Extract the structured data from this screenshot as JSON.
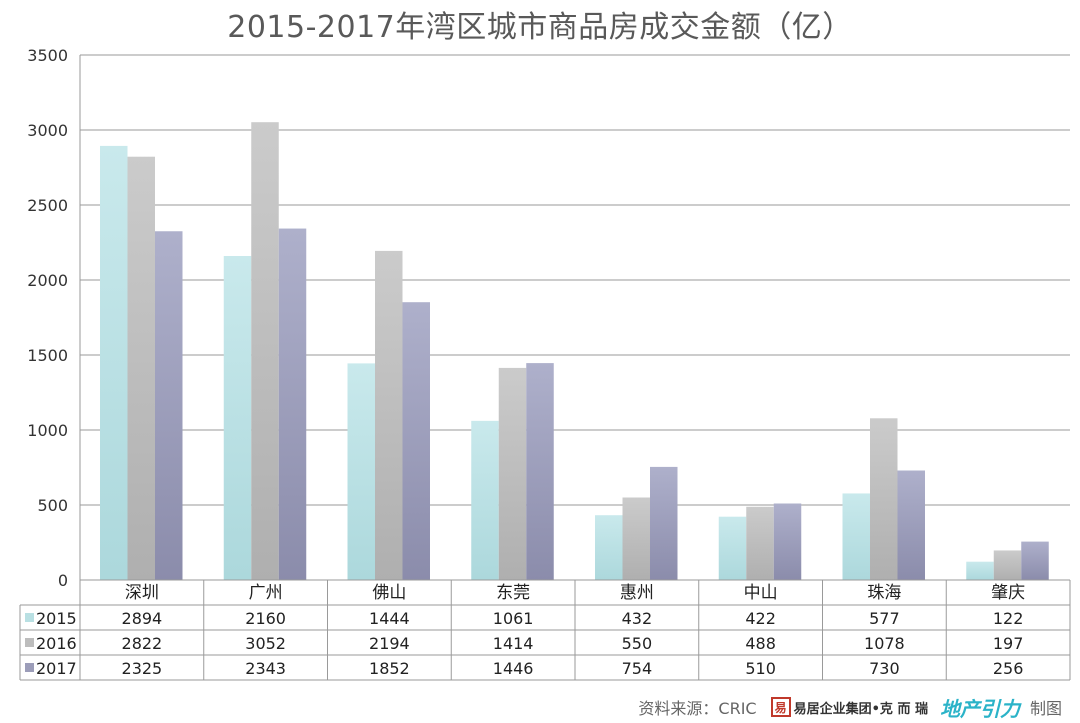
{
  "chart_data": {
    "type": "bar",
    "title": "2015-2017年湾区城市商品房成交金额（亿）",
    "categories": [
      "深圳",
      "广州",
      "佛山",
      "东莞",
      "惠州",
      "中山",
      "珠海",
      "肇庆"
    ],
    "series": [
      {
        "name": "2015",
        "values": [
          2894,
          2160,
          1444,
          1061,
          432,
          422,
          577,
          122
        ],
        "color": "#b9e0e3"
      },
      {
        "name": "2016",
        "values": [
          2822,
          3052,
          2194,
          1414,
          550,
          488,
          1078,
          197
        ],
        "color": "#bdbdbd"
      },
      {
        "name": "2017",
        "values": [
          2325,
          2343,
          1852,
          1446,
          754,
          510,
          730,
          256
        ],
        "color": "#9c9db9"
      }
    ],
    "y_ticks": [
      "0",
      "500",
      "1000",
      "1500",
      "2000",
      "2500",
      "3000",
      "3500"
    ],
    "ylim": [
      0,
      3500
    ],
    "grid": true,
    "legend": "data-table"
  },
  "source": {
    "text": "资料来源：CRIC",
    "logo_box": "易",
    "logo_text": "易居企业集团•克 而 瑞",
    "logo_text2": "地产引力",
    "made_by": "制图"
  }
}
